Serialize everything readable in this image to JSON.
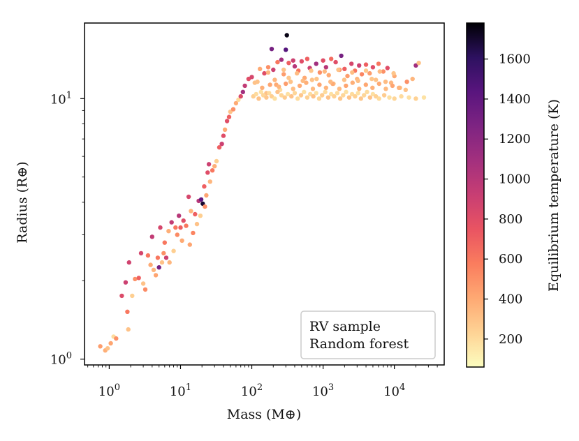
{
  "chart_data": {
    "type": "scatter",
    "title": "",
    "xlabel": "Mass (M⊕)",
    "ylabel": "Radius (R⊕)",
    "xscale": "log",
    "yscale": "log",
    "xlim": [
      0.45,
      50000
    ],
    "ylim": [
      0.95,
      19.5
    ],
    "x_ticks": [
      {
        "value": 1,
        "label": "10",
        "exp": "0"
      },
      {
        "value": 10,
        "label": "10",
        "exp": "1"
      },
      {
        "value": 100,
        "label": "10",
        "exp": "2"
      },
      {
        "value": 1000,
        "label": "10",
        "exp": "3"
      },
      {
        "value": 10000,
        "label": "10",
        "exp": "4"
      }
    ],
    "y_ticks": [
      {
        "value": 1,
        "label": "10",
        "exp": "0"
      },
      {
        "value": 10,
        "label": "10",
        "exp": "1"
      }
    ],
    "legend": {
      "placement": "lower-right",
      "lines": [
        "RV sample",
        "Random forest"
      ]
    },
    "colorbar": {
      "label": "Equilibrium temperature (K)",
      "range": [
        60,
        1780
      ],
      "ticks": [
        200,
        400,
        600,
        800,
        1000,
        1200,
        1400,
        1600
      ],
      "colormap": [
        "#fcfdbf",
        "#fed395",
        "#fea973",
        "#fa7d5e",
        "#e95462",
        "#c83e73",
        "#a3307e",
        "#7e2482",
        "#59157e",
        "#2d1160",
        "#000004"
      ]
    },
    "series": [
      {
        "name": "RV sample",
        "points": [
          [
            0.75,
            1.12,
            450
          ],
          [
            0.88,
            1.08,
            380
          ],
          [
            0.95,
            1.1,
            300
          ],
          [
            1.05,
            1.15,
            420
          ],
          [
            1.15,
            1.22,
            200
          ],
          [
            1.25,
            1.2,
            500
          ],
          [
            1.5,
            1.75,
            820
          ],
          [
            1.7,
            1.97,
            900
          ],
          [
            1.8,
            1.52,
            600
          ],
          [
            1.85,
            1.3,
            300
          ],
          [
            1.9,
            2.35,
            880
          ],
          [
            2.1,
            1.75,
            250
          ],
          [
            2.3,
            2.03,
            500
          ],
          [
            2.6,
            2.05,
            700
          ],
          [
            2.8,
            2.55,
            860
          ],
          [
            3.0,
            1.95,
            300
          ],
          [
            3.2,
            1.85,
            520
          ],
          [
            3.5,
            2.5,
            600
          ],
          [
            3.8,
            2.3,
            400
          ],
          [
            4.0,
            2.95,
            950
          ],
          [
            4.2,
            2.2,
            350
          ],
          [
            4.5,
            2.1,
            420
          ],
          [
            4.8,
            2.45,
            600
          ],
          [
            5.0,
            2.25,
            1300
          ],
          [
            5.2,
            3.2,
            850
          ],
          [
            5.5,
            2.35,
            300
          ],
          [
            5.8,
            2.55,
            500
          ],
          [
            6.0,
            2.8,
            600
          ],
          [
            6.3,
            2.45,
            900
          ],
          [
            6.8,
            3.1,
            380
          ],
          [
            7.0,
            2.35,
            350
          ],
          [
            7.5,
            3.35,
            950
          ],
          [
            8.0,
            2.6,
            250
          ],
          [
            8.5,
            3.2,
            600
          ],
          [
            9.0,
            3.0,
            520
          ],
          [
            9.5,
            3.55,
            1000
          ],
          [
            10.0,
            3.2,
            700
          ],
          [
            10.5,
            2.85,
            400
          ],
          [
            11.0,
            3.4,
            800
          ],
          [
            12.0,
            3.25,
            600
          ],
          [
            13.0,
            4.2,
            850
          ],
          [
            13.5,
            2.75,
            420
          ],
          [
            14.0,
            3.7,
            350
          ],
          [
            15.0,
            3.05,
            550
          ],
          [
            16.0,
            3.6,
            700
          ],
          [
            17.0,
            3.3,
            300
          ],
          [
            18.0,
            4.05,
            1000
          ],
          [
            19.0,
            3.55,
            250
          ],
          [
            19.5,
            4.1,
            1400
          ],
          [
            20.5,
            3.95,
            1700
          ],
          [
            21.5,
            4.6,
            700
          ],
          [
            22.0,
            3.85,
            500
          ],
          [
            23.0,
            4.25,
            420
          ],
          [
            24.0,
            5.2,
            800
          ],
          [
            25.0,
            5.6,
            900
          ],
          [
            26.0,
            4.8,
            350
          ],
          [
            28.0,
            5.3,
            600
          ],
          [
            30.0,
            5.5,
            380
          ],
          [
            32.0,
            5.75,
            250
          ],
          [
            35.0,
            6.5,
            700
          ],
          [
            38.0,
            6.7,
            900
          ],
          [
            40.0,
            7.2,
            800
          ],
          [
            42.0,
            7.6,
            400
          ],
          [
            45.0,
            8.2,
            800
          ],
          [
            48.0,
            8.5,
            700
          ],
          [
            50.0,
            8.9,
            300
          ],
          [
            55.0,
            9.1,
            500
          ],
          [
            60.0,
            9.6,
            400
          ],
          [
            65.0,
            9.9,
            200
          ],
          [
            70.0,
            10.2,
            820
          ],
          [
            75.0,
            10.6,
            1100
          ],
          [
            80.0,
            11.2,
            950
          ],
          [
            90.0,
            11.9,
            800
          ],
          [
            100.0,
            12.1,
            850
          ],
          [
            110.0,
            11.5,
            300
          ],
          [
            130.0,
            13.0,
            400
          ],
          [
            150.0,
            12.5,
            800
          ],
          [
            160.0,
            10.5,
            300
          ],
          [
            170.0,
            13.2,
            500
          ],
          [
            190.0,
            15.5,
            1300
          ],
          [
            200.0,
            12.9,
            900
          ],
          [
            220.0,
            11.3,
            400
          ],
          [
            230.0,
            13.8,
            600
          ],
          [
            250.0,
            10.8,
            200
          ],
          [
            260.0,
            14.1,
            1100
          ],
          [
            280.0,
            12.4,
            450
          ],
          [
            300.0,
            15.4,
            1450
          ],
          [
            310.0,
            17.5,
            1750
          ],
          [
            330.0,
            13.7,
            700
          ],
          [
            350.0,
            11.6,
            300
          ],
          [
            380.0,
            14.0,
            900
          ],
          [
            400.0,
            13.3,
            1000
          ],
          [
            450.0,
            12.8,
            600
          ],
          [
            500.0,
            13.9,
            800
          ],
          [
            550.0,
            12.0,
            400
          ],
          [
            600.0,
            14.2,
            700
          ],
          [
            650.0,
            13.1,
            900
          ],
          [
            700.0,
            11.8,
            300
          ],
          [
            800.0,
            13.6,
            1100
          ],
          [
            900.0,
            12.6,
            500
          ],
          [
            1000.0,
            14.0,
            800
          ],
          [
            1100.0,
            13.2,
            1000
          ],
          [
            1200.0,
            12.3,
            400
          ],
          [
            1300.0,
            14.2,
            650
          ],
          [
            1400.0,
            11.4,
            300
          ],
          [
            1500.0,
            13.8,
            800
          ],
          [
            1700.0,
            12.9,
            500
          ],
          [
            1800.0,
            14.6,
            1300
          ],
          [
            2000.0,
            13.0,
            700
          ],
          [
            2200.0,
            12.2,
            450
          ],
          [
            2500.0,
            13.6,
            850
          ],
          [
            2800.0,
            12.8,
            600
          ],
          [
            3000.0,
            11.9,
            350
          ],
          [
            3200.0,
            13.4,
            900
          ],
          [
            3500.0,
            12.4,
            550
          ],
          [
            4000.0,
            13.5,
            700
          ],
          [
            4500.0,
            12.5,
            450
          ],
          [
            5000.0,
            13.2,
            800
          ],
          [
            5500.0,
            11.8,
            300
          ],
          [
            6000.0,
            13.6,
            600
          ],
          [
            7000.0,
            12.7,
            500
          ],
          [
            8000.0,
            13.1,
            800
          ],
          [
            9000.0,
            11.5,
            350
          ],
          [
            10000.0,
            12.2,
            400
          ],
          [
            12000.0,
            11.0,
            300
          ],
          [
            15000.0,
            11.6,
            500
          ],
          [
            18000.0,
            11.9,
            350
          ],
          [
            20000.0,
            13.4,
            1100
          ],
          [
            22000.0,
            13.7,
            300
          ]
        ]
      },
      {
        "name": "Random forest",
        "points": [
          [
            105.0,
            10.2,
            250
          ],
          [
            115.0,
            10.4,
            200
          ],
          [
            125.0,
            10.0,
            300
          ],
          [
            135.0,
            10.6,
            180
          ],
          [
            145.0,
            10.3,
            220
          ],
          [
            160.0,
            10.1,
            280
          ],
          [
            175.0,
            10.5,
            200
          ],
          [
            190.0,
            10.2,
            250
          ],
          [
            210.0,
            10.0,
            180
          ],
          [
            230.0,
            10.6,
            300
          ],
          [
            260.0,
            10.3,
            220
          ],
          [
            290.0,
            10.1,
            260
          ],
          [
            320.0,
            10.4,
            180
          ],
          [
            360.0,
            10.2,
            300
          ],
          [
            400.0,
            10.5,
            220
          ],
          [
            440.0,
            10.0,
            200
          ],
          [
            490.0,
            10.3,
            280
          ],
          [
            540.0,
            10.6,
            180
          ],
          [
            600.0,
            10.1,
            240
          ],
          [
            660.0,
            10.4,
            200
          ],
          [
            730.0,
            10.2,
            300
          ],
          [
            800.0,
            10.5,
            180
          ],
          [
            880.0,
            10.0,
            220
          ],
          [
            970.0,
            10.3,
            260
          ],
          [
            1070.0,
            10.6,
            200
          ],
          [
            1180.0,
            10.1,
            300
          ],
          [
            1300.0,
            10.4,
            180
          ],
          [
            1430.0,
            10.2,
            240
          ],
          [
            1580.0,
            10.5,
            200
          ],
          [
            1740.0,
            10.0,
            280
          ],
          [
            1910.0,
            10.3,
            220
          ],
          [
            2100.0,
            10.6,
            180
          ],
          [
            2320.0,
            10.1,
            300
          ],
          [
            2550.0,
            10.4,
            200
          ],
          [
            2810.0,
            10.2,
            240
          ],
          [
            3100.0,
            10.5,
            180
          ],
          [
            3400.0,
            10.0,
            280
          ],
          [
            3750.0,
            10.3,
            220
          ],
          [
            4130.0,
            10.6,
            200
          ],
          [
            4550.0,
            10.1,
            300
          ],
          [
            5000.0,
            10.4,
            180
          ],
          [
            5500.0,
            10.2,
            240
          ],
          [
            6100.0,
            10.0,
            200
          ],
          [
            7200.0,
            10.3,
            260
          ],
          [
            8500.0,
            10.1,
            180
          ],
          [
            10000.0,
            10.0,
            220
          ],
          [
            12500.0,
            10.2,
            200
          ],
          [
            16000.0,
            10.1,
            180
          ],
          [
            20000.0,
            10.0,
            240
          ],
          [
            26000.0,
            10.1,
            170
          ],
          [
            140.0,
            11.0,
            380
          ],
          [
            180.0,
            11.3,
            420
          ],
          [
            240.0,
            11.1,
            350
          ],
          [
            300.0,
            11.4,
            450
          ],
          [
            380.0,
            10.9,
            320
          ],
          [
            470.0,
            11.2,
            400
          ],
          [
            580.0,
            11.5,
            380
          ],
          [
            720.0,
            10.9,
            340
          ],
          [
            890.0,
            11.3,
            420
          ],
          [
            1100.0,
            11.0,
            360
          ],
          [
            1360.0,
            11.4,
            400
          ],
          [
            1690.0,
            10.9,
            330
          ],
          [
            2090.0,
            11.2,
            420
          ],
          [
            2590.0,
            11.5,
            380
          ],
          [
            3210.0,
            10.9,
            350
          ],
          [
            3980.0,
            11.3,
            410
          ],
          [
            4930.0,
            11.0,
            370
          ],
          [
            6110.0,
            11.4,
            400
          ],
          [
            7580.0,
            10.9,
            340
          ],
          [
            9400.0,
            11.2,
            420
          ],
          [
            11600.0,
            11.0,
            360
          ],
          [
            14400.0,
            10.8,
            300
          ],
          [
            120.0,
            11.6,
            300
          ],
          [
            210.0,
            11.8,
            350
          ],
          [
            330.0,
            12.0,
            280
          ],
          [
            520.0,
            11.7,
            330
          ],
          [
            810.0,
            11.9,
            290
          ],
          [
            1270.0,
            11.6,
            340
          ],
          [
            1980.0,
            11.8,
            300
          ],
          [
            3090.0,
            11.7,
            320
          ],
          [
            4820.0,
            11.9,
            280
          ],
          [
            7520.0,
            11.6,
            330
          ],
          [
            170.0,
            12.6,
            350
          ],
          [
            280.0,
            12.9,
            300
          ],
          [
            430.0,
            12.5,
            330
          ],
          [
            680.0,
            12.8,
            290
          ],
          [
            1050.0,
            12.7,
            340
          ],
          [
            1640.0,
            12.9,
            300
          ],
          [
            2560.0,
            12.6,
            320
          ],
          [
            4000.0,
            12.8,
            280
          ],
          [
            6250.0,
            12.7,
            330
          ],
          [
            9760.0,
            12.5,
            290
          ]
        ]
      }
    ]
  }
}
